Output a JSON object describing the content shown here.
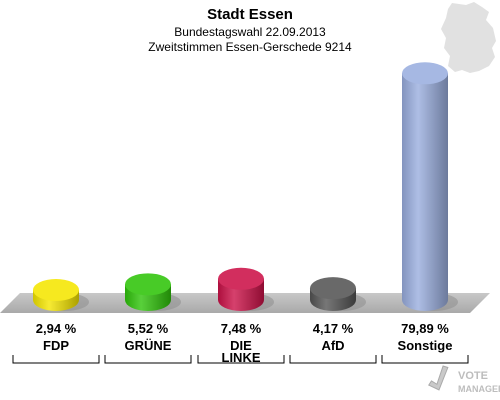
{
  "header": {
    "title": "Stadt Essen",
    "subtitle1": "Bundestagswahl 22.09.2013",
    "subtitle2": "Zweitstimmen Essen-Gerschede 9214"
  },
  "logo": {
    "line1": "VOTE",
    "line2": "MANAGER"
  },
  "chart_data": {
    "type": "bar",
    "categories": [
      "FDP",
      "GRÜNE",
      "DIE LINKE",
      "AfD",
      "Sonstige"
    ],
    "category_lines": [
      [
        "FDP"
      ],
      [
        "GRÜNE"
      ],
      [
        "DIE",
        "LINKE"
      ],
      [
        "AfD"
      ],
      [
        "Sonstige"
      ]
    ],
    "values": [
      2.94,
      5.52,
      7.48,
      4.17,
      79.89
    ],
    "value_labels": [
      "2,94 %",
      "5,52 %",
      "7,48 %",
      "4,17 %",
      "79,89 %"
    ],
    "colors": [
      "#f5e600",
      "#2fc40a",
      "#cc1148",
      "#555555",
      "#9aaedf"
    ],
    "ylim": [
      0,
      80
    ],
    "unit": "%",
    "grid": false,
    "legend": "none"
  },
  "colors": {
    "floor": "#b9b9b9",
    "map": "#e1e1e1"
  }
}
